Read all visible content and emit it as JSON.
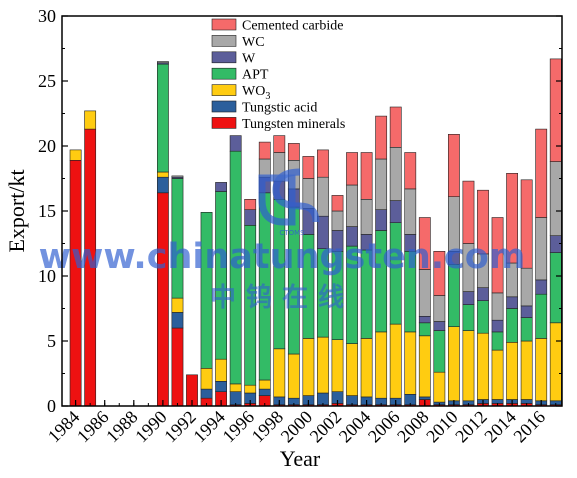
{
  "chart_data": {
    "type": "bar",
    "stacked": true,
    "xlabel": "Year",
    "ylabel": "Export/kt",
    "ylim": [
      0,
      30
    ],
    "yticks": [
      "0",
      "5",
      "10",
      "15",
      "20",
      "25",
      "30"
    ],
    "xticks": [
      "1984",
      "1986",
      "1988",
      "1990",
      "1992",
      "1994",
      "1996",
      "1998",
      "2000",
      "2002",
      "2004",
      "2006",
      "2008",
      "2010",
      "2012",
      "2014",
      "2016"
    ],
    "legend_position": "top-center",
    "grid": false,
    "categories": [
      1984,
      1985,
      1986,
      1987,
      1988,
      1989,
      1990,
      1991,
      1992,
      1993,
      1994,
      1995,
      1996,
      1997,
      1998,
      1999,
      2000,
      2001,
      2002,
      2003,
      2004,
      2005,
      2006,
      2007,
      2008,
      2009,
      2010,
      2011,
      2012,
      2013,
      2014,
      2015,
      2016,
      2017
    ],
    "series": [
      {
        "name": "Tungsten minerals",
        "color": "#ee1111",
        "values": [
          18.9,
          21.3,
          0,
          0,
          0,
          0,
          16.4,
          6.0,
          2.4,
          0.6,
          1.1,
          0.1,
          0.2,
          0.8,
          0.1,
          0.1,
          0.1,
          0.1,
          0.2,
          0.1,
          0.1,
          0.1,
          0.1,
          0.1,
          0.5,
          0.1,
          0.1,
          0.1,
          0.2,
          0.2,
          0.2,
          0.2,
          0.1,
          0.1
        ]
      },
      {
        "name": "Tungstic acid",
        "color": "#2b5f9c",
        "values": [
          0,
          0,
          0,
          0,
          0,
          0,
          1.2,
          1.2,
          0,
          0.7,
          0.8,
          1.0,
          0.8,
          0.5,
          0.6,
          0.5,
          0.7,
          0.9,
          0.9,
          0.7,
          0.6,
          0.5,
          0.5,
          0.8,
          0.2,
          0.2,
          0.3,
          0.3,
          0.3,
          0.3,
          0.3,
          0.3,
          0.3,
          0.3
        ]
      },
      {
        "name": "WO3",
        "color": "#ffcc11",
        "values": [
          0.8,
          1.4,
          0,
          0,
          0,
          0,
          0.4,
          1.1,
          0,
          1.6,
          1.7,
          0.6,
          0.6,
          0.7,
          3.7,
          3.4,
          4.4,
          4.3,
          4.0,
          4.0,
          4.5,
          5.1,
          5.7,
          4.8,
          4.7,
          2.3,
          5.7,
          5.4,
          5.1,
          3.8,
          4.4,
          4.5,
          4.8,
          6.0
        ]
      },
      {
        "name": "APT",
        "color": "#33bb66",
        "values": [
          0,
          0,
          0,
          0,
          0,
          0,
          8.3,
          9.2,
          0,
          12.0,
          12.9,
          17.9,
          12.3,
          14.4,
          11.5,
          11.3,
          8.0,
          6.8,
          6.8,
          7.5,
          6.8,
          7.8,
          7.8,
          6.2,
          1.0,
          3.2,
          4.8,
          2.0,
          2.5,
          1.4,
          2.6,
          1.8,
          3.4,
          5.4
        ]
      },
      {
        "name": "W",
        "color": "#5c5e9a",
        "values": [
          0,
          0,
          0,
          0,
          0,
          0,
          0.1,
          0.1,
          0,
          0,
          0.7,
          1.2,
          1.2,
          1.2,
          1.4,
          1.4,
          2.0,
          2.5,
          1.6,
          1.5,
          1.2,
          1.6,
          1.7,
          1.3,
          0.5,
          0.7,
          1.0,
          1.0,
          1.0,
          0.9,
          0.9,
          0.9,
          1.1,
          1.3
        ]
      },
      {
        "name": "WC",
        "color": "#a8a8a8",
        "values": [
          0,
          0,
          0,
          0,
          0,
          0,
          0.1,
          0.1,
          0,
          0,
          0,
          0,
          0,
          1.4,
          2.2,
          2.2,
          2.3,
          3.0,
          1.5,
          3.2,
          2.7,
          3.9,
          4.1,
          3.5,
          3.6,
          2.0,
          4.2,
          3.7,
          2.6,
          2.1,
          2.6,
          2.9,
          4.8,
          5.7
        ]
      },
      {
        "name": "Cemented carbide",
        "color": "#f56a6a",
        "values": [
          0,
          0,
          0,
          0,
          0,
          0,
          0,
          0,
          0,
          0,
          0,
          0,
          0.8,
          1.3,
          1.3,
          1.3,
          1.7,
          2.1,
          1.2,
          2.5,
          3.6,
          3.3,
          3.1,
          2.8,
          4.0,
          3.4,
          4.8,
          4.8,
          4.9,
          5.8,
          6.9,
          6.8,
          6.8,
          7.9
        ]
      }
    ],
    "legend": [
      {
        "label": "Cemented carbide",
        "color": "#f56a6a"
      },
      {
        "label": "WC",
        "color": "#a8a8a8"
      },
      {
        "label": "W",
        "color": "#5c5e9a"
      },
      {
        "label": "APT",
        "color": "#33bb66"
      },
      {
        "label": "WO",
        "sub": "3",
        "color": "#ffcc11"
      },
      {
        "label": "Tungstic acid",
        "color": "#2b5f9c"
      },
      {
        "label": "Tungsten minerals",
        "color": "#ee1111"
      }
    ]
  },
  "watermark": {
    "url_text": "www.chinatungsten.com",
    "chinese_text": "中钨在线",
    "logo_text": "CTOMS",
    "color": "#2f5fd0"
  }
}
